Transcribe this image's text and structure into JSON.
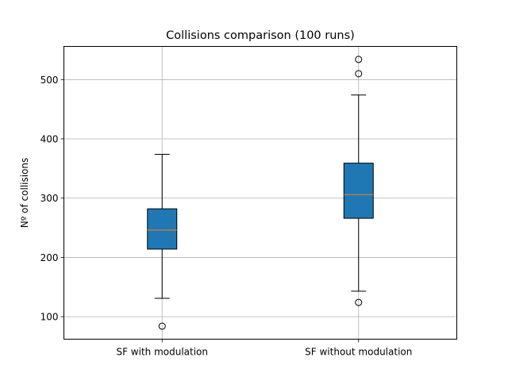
{
  "chart_data": {
    "type": "box",
    "title": "Collisions comparison (100 runs)",
    "xlabel": "",
    "ylabel": "Nº of collisions",
    "ylim": [
      62,
      556
    ],
    "yticks": [
      100,
      200,
      300,
      400,
      500
    ],
    "grid": true,
    "categories": [
      "SF with modulation",
      "SF without modulation"
    ],
    "boxes": [
      {
        "whisker_low": 131,
        "q1": 214,
        "median": 246,
        "q3": 282,
        "whisker_high": 374,
        "outliers": [
          84
        ]
      },
      {
        "whisker_low": 143,
        "q1": 266,
        "median": 306,
        "q3": 359,
        "whisker_high": 474,
        "outliers": [
          124,
          510,
          534
        ]
      }
    ],
    "colors": {
      "box_fill": "#1f77b4",
      "median": "#ff7f0e",
      "grid": "#b0b0b0",
      "axis": "#000000"
    }
  }
}
